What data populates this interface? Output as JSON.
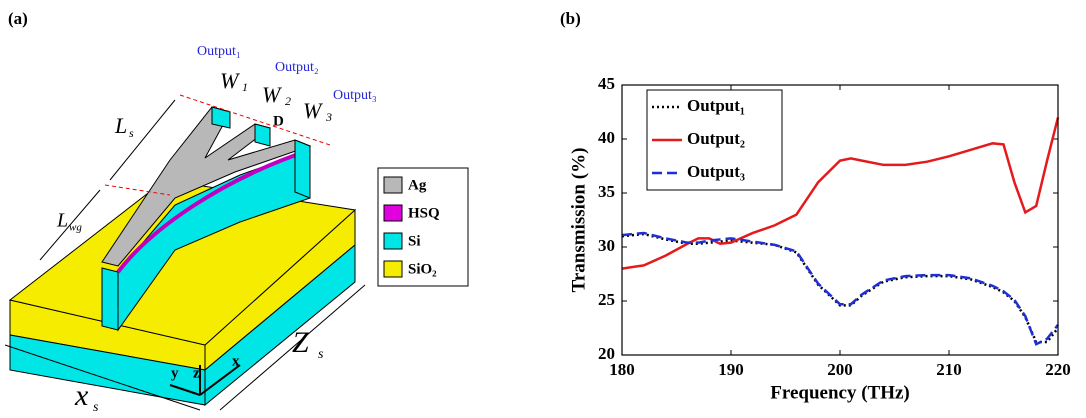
{
  "panel_a": {
    "tag": "(a)",
    "outputs": [
      "Output₁",
      "Output₂",
      "Output₃"
    ],
    "widths": [
      {
        "main": "W",
        "sub": "1"
      },
      {
        "main": "W",
        "sub": "2"
      },
      {
        "main": "W",
        "sub": "3"
      }
    ],
    "gap": "D",
    "ls": {
      "main": "L",
      "sub": "s"
    },
    "lwg": {
      "main": "L",
      "sub": "wg"
    },
    "xs": {
      "main": "x",
      "sub": "s"
    },
    "zs": {
      "main": "Z",
      "sub": "s"
    },
    "axes": [
      "x",
      "y",
      "z"
    ],
    "legend": [
      "Ag",
      "HSQ",
      "Si",
      "SiO₂"
    ]
  },
  "chart_data": {
    "type": "line",
    "tag": "(b)",
    "x_label": "Frequency (THz)",
    "y_label": "Transmission (%)",
    "x": [
      180,
      182,
      184,
      186,
      187,
      188,
      189,
      190,
      192,
      194,
      196,
      197,
      198,
      200,
      201,
      202,
      204,
      206,
      208,
      210,
      212,
      214,
      215,
      216,
      217,
      218,
      219,
      220
    ],
    "series": [
      {
        "name": "Output₁",
        "color": "#000000",
        "style": "dotted",
        "values": [
          31,
          31.2,
          30.7,
          30.3,
          30.3,
          30.4,
          30.5,
          30.6,
          30.4,
          30.2,
          29.5,
          28,
          26.5,
          24.6,
          24.6,
          25.5,
          26.8,
          27.2,
          27.3,
          27.3,
          27,
          26.3,
          25.8,
          25,
          23.5,
          21.2,
          21.2,
          22.5
        ]
      },
      {
        "name": "Output₂",
        "color": "#e41a1c",
        "style": "solid",
        "values": [
          28,
          28.3,
          29.2,
          30.3,
          30.8,
          30.8,
          30.3,
          30.4,
          31.3,
          32,
          33,
          34.5,
          36,
          38,
          38.2,
          38,
          37.6,
          37.6,
          37.9,
          38.4,
          39,
          39.6,
          39.5,
          36,
          33.2,
          33.8,
          38,
          42
        ]
      },
      {
        "name": "Output₃",
        "color": "#1f2fd6",
        "style": "dashed",
        "values": [
          31.1,
          31.3,
          30.8,
          30.4,
          30.4,
          30.6,
          30.7,
          30.8,
          30.5,
          30.2,
          29.6,
          28.1,
          26.6,
          24.7,
          24.7,
          25.6,
          26.9,
          27.3,
          27.4,
          27.4,
          27.1,
          26.4,
          25.9,
          25.1,
          23.6,
          21,
          21.5,
          22.8
        ]
      }
    ],
    "xlim": [
      180,
      220
    ],
    "xticks": [
      180,
      190,
      200,
      210,
      220
    ],
    "ylim": [
      20,
      45
    ],
    "yticks": [
      20,
      25,
      30,
      35,
      40,
      45
    ],
    "legend": "upper left"
  }
}
